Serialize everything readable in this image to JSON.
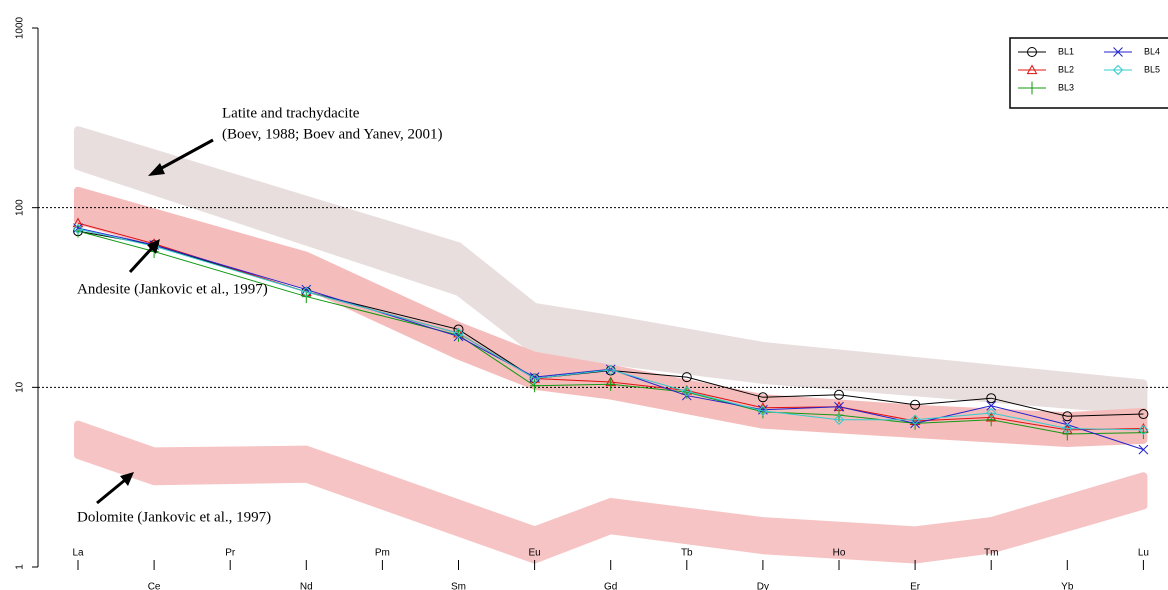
{
  "chart_data": {
    "type": "line",
    "y_scale": "log",
    "categories": [
      "La",
      "Ce",
      "Pr",
      "Nd",
      "Pm",
      "Sm",
      "Eu",
      "Gd",
      "Tb",
      "Dy",
      "Ho",
      "Er",
      "Tm",
      "Yb",
      "Lu"
    ],
    "ylim": [
      1,
      1000
    ],
    "yticks": [
      1,
      10,
      100,
      1000
    ],
    "grid": true,
    "legend": "upper right",
    "series": [
      {
        "name": "BL1",
        "color": "#000000",
        "marker": "circle",
        "x": [
          "La",
          "Ce",
          "Nd",
          "Sm",
          "Eu",
          "Gd",
          "Tb",
          "Dy",
          "Ho",
          "Er",
          "Tm",
          "Yb",
          "Lu"
        ],
        "values": [
          74,
          62,
          34,
          21,
          11.2,
          12.4,
          11.4,
          8.8,
          9.1,
          8.0,
          8.7,
          6.9,
          7.1
        ]
      },
      {
        "name": "BL2",
        "color": "#e01010",
        "marker": "triangle",
        "x": [
          "La",
          "Ce",
          "Nd",
          "Sm",
          "Eu",
          "Gd",
          "Tb",
          "Dy",
          "Ho",
          "Er",
          "Tm",
          "Yb",
          "Lu"
        ],
        "values": [
          82,
          63,
          34,
          20,
          11.2,
          10.7,
          9.6,
          7.7,
          7.8,
          6.5,
          6.8,
          5.8,
          5.9
        ]
      },
      {
        "name": "BL3",
        "color": "#119911",
        "marker": "plus",
        "x": [
          "La",
          "Ce",
          "Nd",
          "Sm",
          "Eu",
          "Gd",
          "Tb",
          "Dy",
          "Ho",
          "Er",
          "Tm",
          "Yb",
          "Lu"
        ],
        "values": [
          74,
          57,
          32,
          19.5,
          10.2,
          10.4,
          9.4,
          7.3,
          7.0,
          6.3,
          6.6,
          5.5,
          5.6
        ]
      },
      {
        "name": "BL4",
        "color": "#2222cc",
        "marker": "cross",
        "x": [
          "La",
          "Ce",
          "Nd",
          "Sm",
          "Eu",
          "Gd",
          "Tb",
          "Dy",
          "Ho",
          "Er",
          "Tm",
          "Yb",
          "Lu"
        ],
        "values": [
          77,
          62,
          35,
          19.2,
          11.4,
          12.6,
          9.0,
          7.5,
          7.8,
          6.3,
          7.9,
          6.2,
          4.5
        ]
      },
      {
        "name": "BL5",
        "color": "#33cccc",
        "marker": "diamond",
        "x": [
          "La",
          "Ce",
          "Nd",
          "Sm",
          "Eu",
          "Gd",
          "Tb",
          "Dy",
          "Ho",
          "Er",
          "Tm",
          "Yb",
          "Lu"
        ],
        "values": [
          76,
          61,
          34,
          20,
          11.2,
          12.5,
          9.5,
          7.4,
          6.6,
          6.6,
          7.2,
          5.9,
          5.8
        ]
      }
    ],
    "bands": [
      {
        "color": "#e9dede",
        "x": [
          "La",
          "Sm",
          "Eu",
          "Gd",
          "Dy",
          "Lu"
        ],
        "high": [
          270,
          61,
          28,
          24,
          17,
          10.5
        ],
        "low": [
          170,
          34,
          16,
          14,
          11,
          7.4
        ]
      },
      {
        "color": "#f5bcbc",
        "x": [
          "La",
          "Nd",
          "Sm",
          "Eu",
          "Gd",
          "Dy",
          "Er",
          "Yb",
          "Lu"
        ],
        "high": [
          124,
          54,
          22,
          15,
          12.7,
          8.7,
          7.6,
          6.9,
          7.3
        ],
        "low": [
          85,
          37,
          15,
          10.2,
          9.0,
          6.2,
          5.5,
          4.9,
          5.1
        ]
      },
      {
        "color": "#f6c4c4",
        "x": [
          "La",
          "Ce",
          "Nd",
          "Eu",
          "Gd",
          "Dy",
          "Er",
          "Tm",
          "Lu"
        ],
        "high": [
          6.2,
          4.4,
          4.5,
          1.6,
          2.3,
          1.8,
          1.6,
          1.8,
          3.2
        ],
        "low": [
          4.2,
          3.0,
          3.1,
          1.1,
          1.6,
          1.24,
          1.1,
          1.25,
          2.2
        ]
      }
    ],
    "annotations": [
      "Latite and trachydacite",
      "(Boev, 1988; Boev and Yanev, 2001)",
      "Andesite (Jankovic et al., 1997)",
      "Dolomite (Jankovic et al., 1997)"
    ]
  }
}
